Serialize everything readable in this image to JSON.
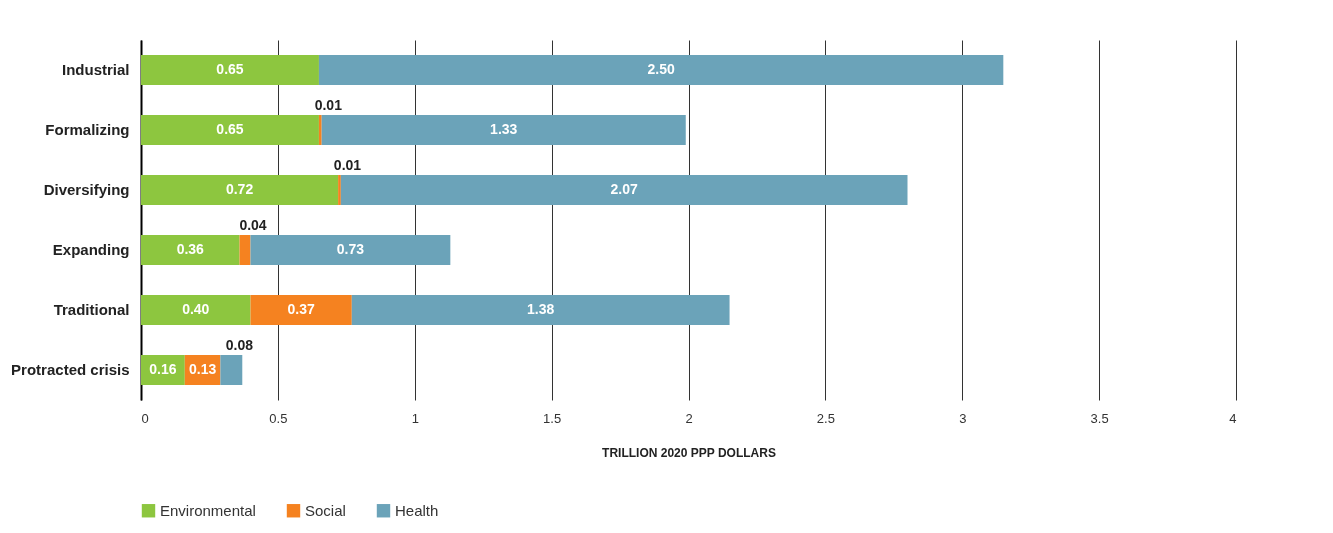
{
  "chart_data": {
    "type": "bar",
    "orientation": "horizontal",
    "stacked": true,
    "xlabel": "TRILLION 2020 PPP DOLLARS",
    "categories": [
      "Industrial",
      "Formalizing",
      "Diversifying",
      "Expanding",
      "Traditional",
      "Protracted crisis"
    ],
    "series": [
      {
        "name": "Environmental",
        "color": "#8dc63f",
        "values": [
          0.65,
          0.65,
          0.72,
          0.36,
          0.4,
          0.16
        ],
        "value_labels": [
          "0.65",
          "0.65",
          "0.72",
          "0.36",
          "0.40",
          "0.16"
        ]
      },
      {
        "name": "Social",
        "color": "#f58220",
        "values": [
          null,
          0.01,
          0.01,
          0.04,
          0.37,
          0.13
        ],
        "value_labels": [
          null,
          "0.01",
          "0.01",
          "0.04",
          "0.37",
          "0.13"
        ]
      },
      {
        "name": "Health",
        "color": "#6ba3b9",
        "values": [
          2.5,
          1.33,
          2.07,
          0.73,
          1.38,
          0.08
        ],
        "value_labels": [
          "2.50",
          "1.33",
          "2.07",
          "0.73",
          "1.38",
          "0.08"
        ]
      }
    ],
    "xlim": [
      0,
      4
    ],
    "xticks": [
      0,
      0.5,
      1,
      1.5,
      2,
      2.5,
      3,
      3.5,
      4
    ],
    "grid": "x",
    "legend": "bottom left"
  }
}
